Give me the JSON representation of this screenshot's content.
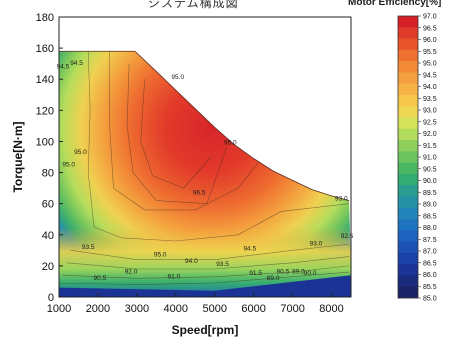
{
  "top_text": "システム構成図",
  "chart_data": {
    "type": "heatmap",
    "subtype": "efficiency-contour-map",
    "title": "",
    "xlabel": "Speed[rpm]",
    "ylabel": "Torque[N·m]",
    "xlim": [
      1000,
      8500
    ],
    "ylim": [
      0,
      180
    ],
    "x_ticks": [
      "1000",
      "2000",
      "3000",
      "4000",
      "5000",
      "6000",
      "7000",
      "8000"
    ],
    "y_ticks": [
      "0",
      "20",
      "40",
      "60",
      "80",
      "100",
      "120",
      "140",
      "160",
      "180"
    ],
    "grid": false,
    "operating_envelope": [
      {
        "speed": 1000,
        "torque": 158
      },
      {
        "speed": 2950,
        "torque": 158
      },
      {
        "speed": 3500,
        "torque": 145
      },
      {
        "speed": 4000,
        "torque": 133
      },
      {
        "speed": 4500,
        "torque": 121
      },
      {
        "speed": 5000,
        "torque": 109
      },
      {
        "speed": 5500,
        "torque": 98
      },
      {
        "speed": 6000,
        "torque": 89
      },
      {
        "speed": 6500,
        "torque": 81
      },
      {
        "speed": 7000,
        "torque": 75
      },
      {
        "speed": 7500,
        "torque": 69
      },
      {
        "speed": 8000,
        "torque": 65
      },
      {
        "speed": 8450,
        "torque": 62
      }
    ],
    "contour_labels": [
      {
        "text": "94.5",
        "speed": 1100,
        "torque": 147
      },
      {
        "text": "94.5",
        "speed": 1450,
        "torque": 149
      },
      {
        "text": "95.0",
        "speed": 4050,
        "torque": 140
      },
      {
        "text": "95.0",
        "speed": 5400,
        "torque": 98
      },
      {
        "text": "95.0",
        "speed": 1550,
        "torque": 92
      },
      {
        "text": "95.0",
        "speed": 1250,
        "torque": 84
      },
      {
        "text": "96.5",
        "speed": 4600,
        "torque": 66
      },
      {
        "text": "93.0",
        "speed": 8250,
        "torque": 62
      },
      {
        "text": "92.5",
        "speed": 8400,
        "torque": 38
      },
      {
        "text": "93.0",
        "speed": 7600,
        "torque": 33
      },
      {
        "text": "93.5",
        "speed": 1750,
        "torque": 31
      },
      {
        "text": "95.0",
        "speed": 3600,
        "torque": 26
      },
      {
        "text": "94.5",
        "speed": 5900,
        "torque": 30
      },
      {
        "text": "94.0",
        "speed": 4400,
        "torque": 22
      },
      {
        "text": "93.5",
        "speed": 5200,
        "torque": 20
      },
      {
        "text": "92.0",
        "speed": 2850,
        "torque": 15
      },
      {
        "text": "91.0",
        "speed": 3950,
        "torque": 12
      },
      {
        "text": "91.5",
        "speed": 6050,
        "torque": 14
      },
      {
        "text": "90.5",
        "speed": 2050,
        "torque": 11
      },
      {
        "text": "89.0",
        "speed": 6500,
        "torque": 11
      },
      {
        "text": "89.5",
        "speed": 7150,
        "torque": 15
      },
      {
        "text": "90.0",
        "speed": 7450,
        "torque": 14
      },
      {
        "text": "90.5",
        "speed": 6750,
        "torque": 15
      }
    ],
    "colorbar": {
      "title": "Motor Efficiency[%]",
      "min": 85.0,
      "max": 97.0,
      "step": 0.5,
      "ticks": [
        "97.0",
        "96.5",
        "96.0",
        "95.5",
        "95.0",
        "94.5",
        "94.0",
        "93.5",
        "93.0",
        "92.5",
        "92.0",
        "91.5",
        "91.0",
        "90.5",
        "90.0",
        "89.5",
        "89.0",
        "88.5",
        "88.0",
        "87.5",
        "87.0",
        "86.5",
        "86.0",
        "85.5",
        "85.0"
      ],
      "colors": [
        "#d42026",
        "#e03a28",
        "#e8552b",
        "#ee7130",
        "#f28a38",
        "#f5a03f",
        "#f7b446",
        "#f6c74c",
        "#eed853",
        "#d4e35a",
        "#b1dc5c",
        "#8ecf5d",
        "#6dc35f",
        "#4ab661",
        "#34ab73",
        "#2a9e8e",
        "#2592a6",
        "#2284b8",
        "#1f74c0",
        "#1d63bd",
        "#1b52b3",
        "#1a42a7",
        "#1a3395",
        "#1a2a7d",
        "#1a2365"
      ]
    }
  }
}
